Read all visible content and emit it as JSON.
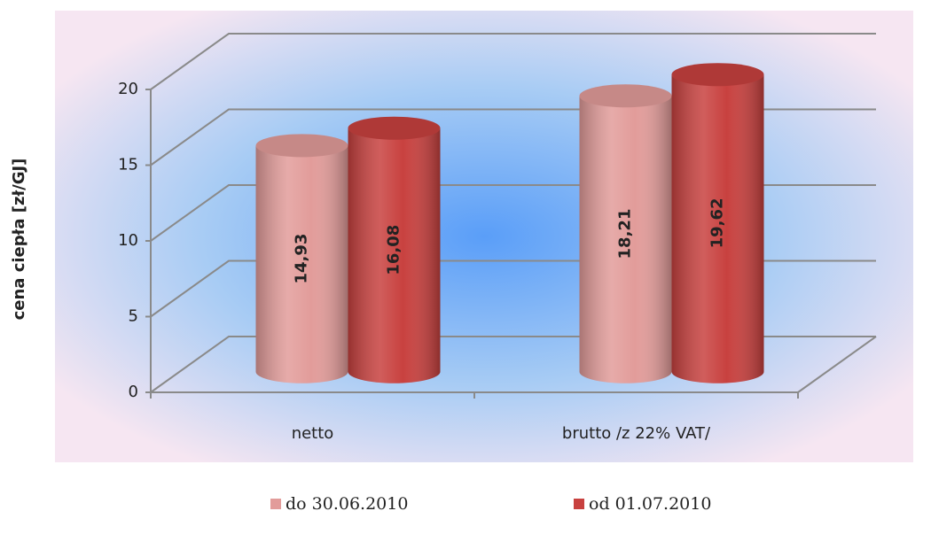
{
  "chart_data": {
    "type": "bar3d",
    "y_label": "cena ciepła [zł/GJ]",
    "categories": [
      "netto",
      "brutto /z 22% VAT/"
    ],
    "series": [
      {
        "name": "do 30.06.2010",
        "color": "#e29c9a",
        "values": [
          14.93,
          18.21
        ],
        "value_labels": [
          "14,93",
          "18,21"
        ]
      },
      {
        "name": "od 01.07.2010",
        "color": "#c8413f",
        "values": [
          16.08,
          19.62
        ],
        "value_labels": [
          "16,08",
          "19,62"
        ]
      }
    ],
    "ylim": [
      0,
      20
    ],
    "yticks": [
      0,
      5,
      10,
      15,
      20
    ],
    "grid": true,
    "legend": "bottom"
  }
}
